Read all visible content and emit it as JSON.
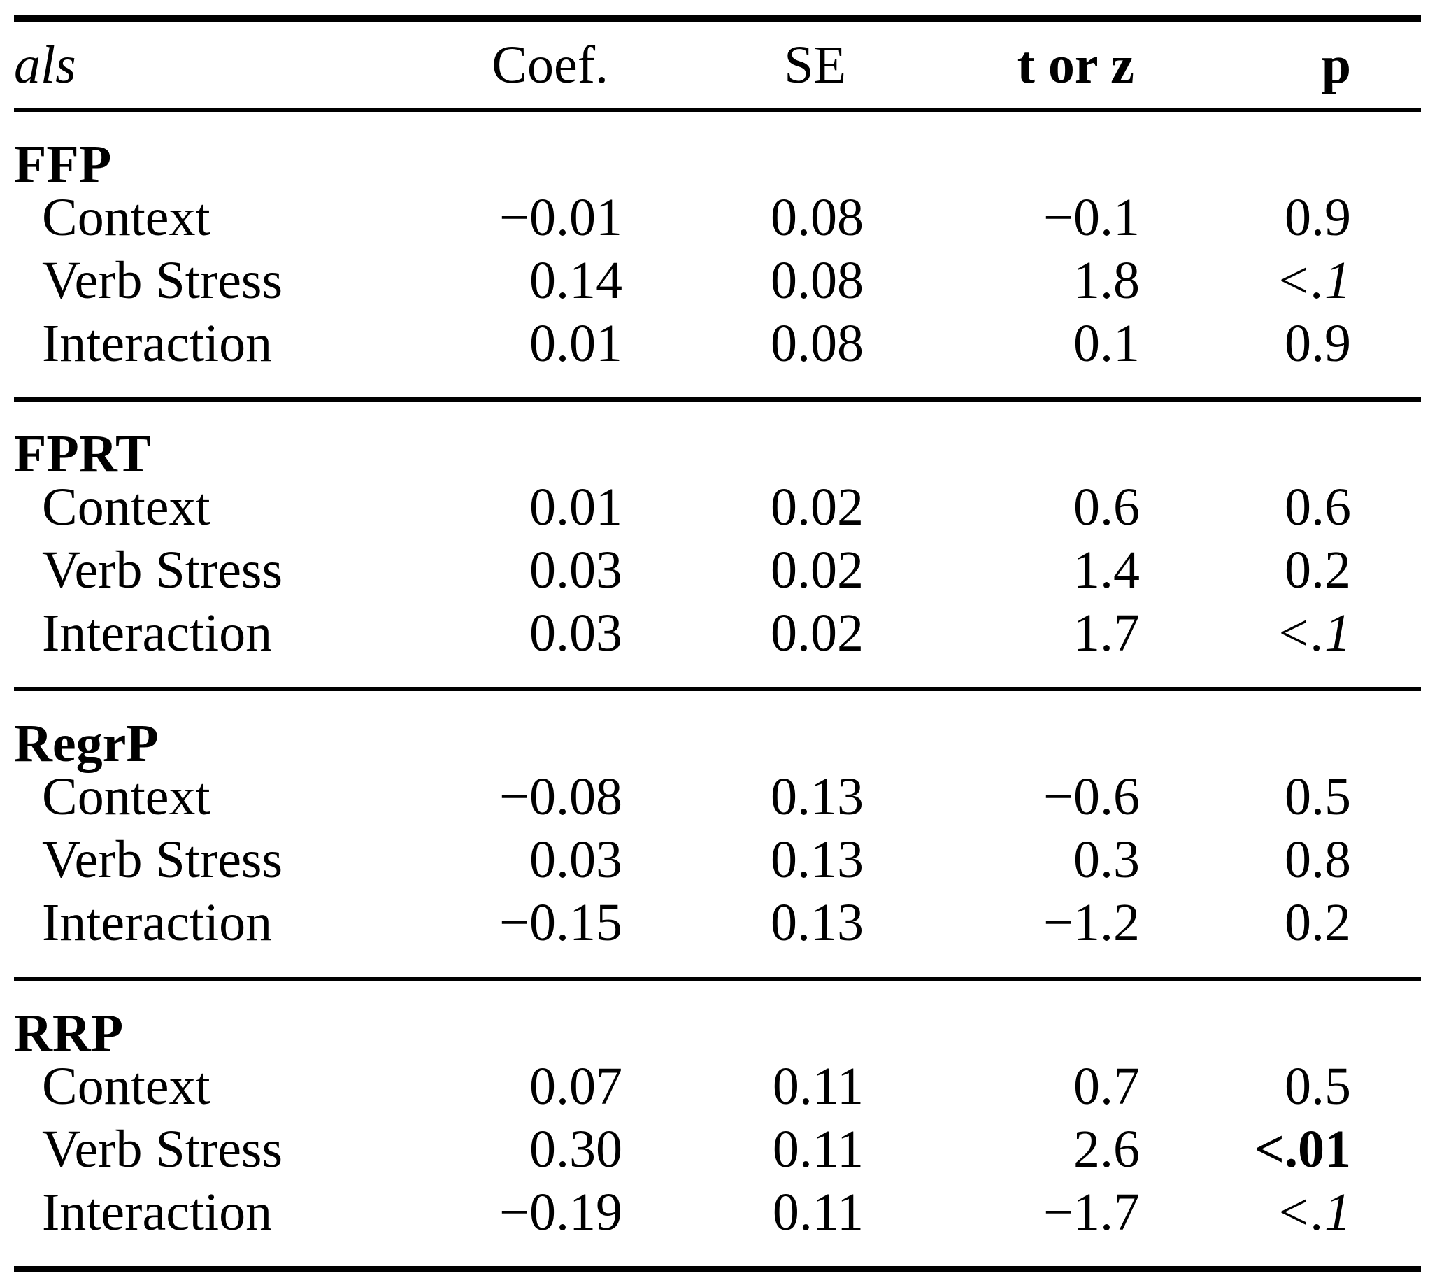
{
  "colors": {
    "background": "#ffffff",
    "text": "#000000",
    "rule": "#000000"
  },
  "table": {
    "header": {
      "label": "als",
      "cols": [
        "Coef.",
        "SE",
        "t or z",
        "p"
      ]
    },
    "sections": [
      {
        "name": "FFP",
        "rows": [
          {
            "label": "Context",
            "coef": "−0.01",
            "se": "0.08",
            "torz": "−0.1",
            "p": "0.9",
            "p_class": ""
          },
          {
            "label": "Verb Stress",
            "coef": "0.14",
            "se": "0.08",
            "torz": "1.8",
            "p": "<.1",
            "p_class": "p-italic"
          },
          {
            "label": "Interaction",
            "coef": "0.01",
            "se": "0.08",
            "torz": "0.1",
            "p": "0.9",
            "p_class": ""
          }
        ]
      },
      {
        "name": "FPRT",
        "rows": [
          {
            "label": "Context",
            "coef": "0.01",
            "se": "0.02",
            "torz": "0.6",
            "p": "0.6",
            "p_class": ""
          },
          {
            "label": "Verb Stress",
            "coef": "0.03",
            "se": "0.02",
            "torz": "1.4",
            "p": "0.2",
            "p_class": ""
          },
          {
            "label": "Interaction",
            "coef": "0.03",
            "se": "0.02",
            "torz": "1.7",
            "p": "<.1",
            "p_class": "p-italic"
          }
        ]
      },
      {
        "name": "RegrP",
        "rows": [
          {
            "label": "Context",
            "coef": "−0.08",
            "se": "0.13",
            "torz": "−0.6",
            "p": "0.5",
            "p_class": ""
          },
          {
            "label": "Verb Stress",
            "coef": "0.03",
            "se": "0.13",
            "torz": "0.3",
            "p": "0.8",
            "p_class": ""
          },
          {
            "label": "Interaction",
            "coef": "−0.15",
            "se": "0.13",
            "torz": "−1.2",
            "p": "0.2",
            "p_class": ""
          }
        ]
      },
      {
        "name": "RRP",
        "rows": [
          {
            "label": "Context",
            "coef": "0.07",
            "se": "0.11",
            "torz": "0.7",
            "p": "0.5",
            "p_class": ""
          },
          {
            "label": "Verb Stress",
            "coef": "0.30",
            "se": "0.11",
            "torz": "2.6",
            "p": "<.01",
            "p_class": "p-bold"
          },
          {
            "label": "Interaction",
            "coef": "−0.19",
            "se": "0.11",
            "torz": "−1.7",
            "p": "<.1",
            "p_class": "p-italic"
          }
        ]
      }
    ]
  }
}
